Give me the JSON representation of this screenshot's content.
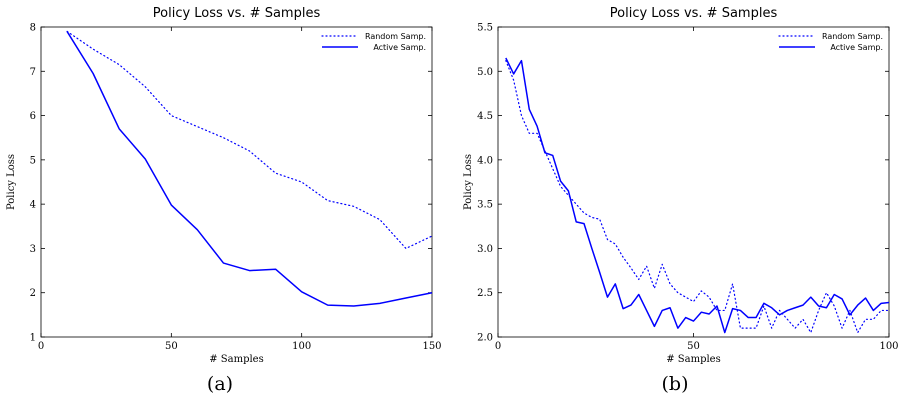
{
  "chart_data": [
    {
      "type": "line",
      "title": "Policy Loss vs. # Samples",
      "xlabel": "# Samples",
      "ylabel": "Policy Loss",
      "caption": "(a)",
      "xlim": [
        0,
        150
      ],
      "ylim": [
        1,
        8
      ],
      "xticks": [
        0,
        50,
        100,
        150
      ],
      "yticks": [
        1,
        2,
        3,
        4,
        5,
        6,
        7,
        8
      ],
      "legend_position": "top-right",
      "grid": false,
      "series": [
        {
          "name": "Random Samp.",
          "style": "dotted",
          "color": "#0000ff",
          "x": [
            10,
            20,
            30,
            40,
            50,
            60,
            70,
            80,
            90,
            100,
            110,
            120,
            130,
            140,
            150
          ],
          "y": [
            7.9,
            7.5,
            7.15,
            6.65,
            6.0,
            5.75,
            5.5,
            5.2,
            4.7,
            4.5,
            4.08,
            3.95,
            3.65,
            3.0,
            3.28
          ]
        },
        {
          "name": "Active Samp.",
          "style": "solid",
          "color": "#0000ff",
          "x": [
            10,
            20,
            30,
            40,
            50,
            60,
            70,
            80,
            90,
            100,
            110,
            120,
            130,
            140,
            150
          ],
          "y": [
            7.9,
            6.95,
            5.7,
            5.02,
            3.98,
            3.42,
            2.67,
            2.5,
            2.53,
            2.02,
            1.72,
            1.7,
            1.76,
            1.88,
            2.0
          ]
        }
      ]
    },
    {
      "type": "line",
      "title": "Policy Loss vs. # Samples",
      "xlabel": "# Samples",
      "ylabel": "Policy Loss",
      "caption": "(b)",
      "xlim": [
        0,
        100
      ],
      "ylim": [
        2.0,
        5.5
      ],
      "xticks": [
        0,
        50,
        100
      ],
      "yticks": [
        2.0,
        2.5,
        3.0,
        3.5,
        4.0,
        4.5,
        5.0,
        5.5
      ],
      "legend_position": "top-right",
      "grid": false,
      "series": [
        {
          "name": "Random Samp.",
          "style": "dotted",
          "color": "#0000ff",
          "x": [
            2,
            4,
            6,
            8,
            10,
            12,
            14,
            16,
            18,
            20,
            22,
            24,
            26,
            28,
            30,
            32,
            34,
            36,
            38,
            40,
            42,
            44,
            46,
            48,
            50,
            52,
            54,
            56,
            58,
            60,
            62,
            64,
            66,
            68,
            70,
            72,
            74,
            76,
            78,
            80,
            82,
            84,
            86,
            88,
            90,
            92,
            94,
            96,
            98,
            100
          ],
          "y": [
            5.12,
            4.9,
            4.5,
            4.3,
            4.3,
            4.1,
            3.9,
            3.7,
            3.6,
            3.5,
            3.4,
            3.35,
            3.33,
            3.1,
            3.05,
            2.9,
            2.78,
            2.65,
            2.8,
            2.55,
            2.82,
            2.6,
            2.5,
            2.45,
            2.4,
            2.52,
            2.45,
            2.3,
            2.3,
            2.6,
            2.1,
            2.1,
            2.1,
            2.35,
            2.1,
            2.3,
            2.2,
            2.1,
            2.2,
            2.05,
            2.3,
            2.5,
            2.35,
            2.1,
            2.3,
            2.05,
            2.2,
            2.2,
            2.3,
            2.3
          ]
        },
        {
          "name": "Active Samp.",
          "style": "solid",
          "color": "#0000ff",
          "x": [
            2,
            4,
            6,
            8,
            10,
            12,
            14,
            16,
            18,
            20,
            22,
            24,
            26,
            28,
            30,
            32,
            34,
            36,
            38,
            40,
            42,
            44,
            46,
            48,
            50,
            52,
            54,
            56,
            58,
            60,
            62,
            64,
            66,
            68,
            70,
            72,
            74,
            76,
            78,
            80,
            82,
            84,
            86,
            88,
            90,
            92,
            94,
            96,
            98,
            100
          ],
          "y": [
            5.15,
            4.97,
            5.12,
            4.57,
            4.38,
            4.08,
            4.05,
            3.76,
            3.65,
            3.3,
            3.28,
            3.0,
            2.73,
            2.45,
            2.6,
            2.32,
            2.36,
            2.48,
            2.3,
            2.12,
            2.3,
            2.33,
            2.1,
            2.22,
            2.18,
            2.28,
            2.26,
            2.35,
            2.05,
            2.32,
            2.3,
            2.22,
            2.22,
            2.38,
            2.33,
            2.25,
            2.3,
            2.33,
            2.36,
            2.45,
            2.35,
            2.33,
            2.48,
            2.43,
            2.25,
            2.36,
            2.44,
            2.3,
            2.38,
            2.39
          ]
        }
      ]
    }
  ]
}
